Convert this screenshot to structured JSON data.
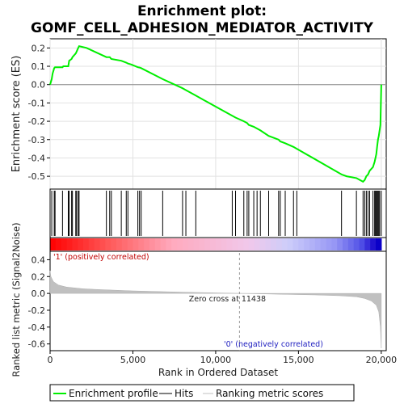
{
  "chart_data": {
    "type": "line",
    "title_line1": "Enrichment plot:",
    "title_line2": "GOMF_CELL_ADHESION_MEDIATOR_ACTIVITY",
    "es_panel": {
      "ylabel": "Enrichment score (ES)",
      "ylim": [
        -0.57,
        0.25
      ],
      "yticks": [
        0.2,
        0.1,
        0.0,
        -0.1,
        -0.2,
        -0.3,
        -0.4,
        -0.5
      ],
      "ytick_labels": [
        "0.2",
        "0.1",
        "0.0",
        "-0.1",
        "-0.2",
        "-0.3",
        "-0.4",
        "-0.5"
      ],
      "series_name": "Enrichment profile",
      "series_color": "#00ee00",
      "x": [
        0,
        100,
        150,
        250,
        300,
        750,
        800,
        1100,
        1150,
        1300,
        1350,
        1550,
        1600,
        1700,
        1750,
        2200,
        3400,
        3600,
        3700,
        4300,
        4600,
        4700,
        4900,
        5300,
        5400,
        5500,
        6800,
        8000,
        8200,
        8800,
        11000,
        11200,
        11700,
        11900,
        12000,
        12300,
        12500,
        12700,
        13200,
        13800,
        13900,
        14200,
        14700,
        14900,
        17600,
        17900,
        18500,
        18900,
        19000,
        19100,
        19200,
        19300,
        19500,
        19600,
        19700,
        19750,
        19800,
        19850,
        19900,
        19950,
        20000
      ],
      "y": [
        0.0,
        0.03,
        0.06,
        0.09,
        0.095,
        0.095,
        0.1,
        0.1,
        0.13,
        0.14,
        0.15,
        0.17,
        0.18,
        0.2,
        0.21,
        0.2,
        0.15,
        0.15,
        0.14,
        0.13,
        0.12,
        0.115,
        0.11,
        0.095,
        0.093,
        0.09,
        0.03,
        -0.02,
        -0.03,
        -0.06,
        -0.17,
        -0.18,
        -0.2,
        -0.21,
        -0.22,
        -0.23,
        -0.24,
        -0.25,
        -0.28,
        -0.3,
        -0.31,
        -0.32,
        -0.34,
        -0.35,
        -0.49,
        -0.5,
        -0.51,
        -0.53,
        -0.52,
        -0.5,
        -0.49,
        -0.47,
        -0.45,
        -0.42,
        -0.38,
        -0.34,
        -0.3,
        -0.28,
        -0.25,
        -0.22,
        0.0
      ]
    },
    "hits": [
      100,
      250,
      300,
      750,
      1100,
      1150,
      1300,
      1350,
      1550,
      1600,
      1700,
      1750,
      3400,
      3600,
      3700,
      4300,
      4600,
      4700,
      5300,
      5400,
      5500,
      6800,
      8000,
      8200,
      8800,
      11000,
      11200,
      11700,
      11900,
      12000,
      12300,
      12500,
      12700,
      13200,
      13800,
      13900,
      14200,
      14700,
      14900,
      17600,
      18500,
      18900,
      19000,
      19100,
      19200,
      19300,
      19500,
      19600,
      19650,
      19700,
      19750,
      19800,
      19850,
      19900,
      20000
    ],
    "metric_panel": {
      "ylabel": "Ranked list metric (Signal2Noise)",
      "ylim": [
        -0.68,
        0.5
      ],
      "yticks": [
        0.4,
        0.2,
        0.0,
        -0.2,
        -0.4,
        -0.6
      ],
      "ytick_labels": [
        "0.4",
        "0.2",
        "0.0",
        "-0.2",
        "-0.4",
        "-0.6"
      ],
      "x": [
        0,
        50,
        200,
        500,
        1000,
        2000,
        3000,
        5000,
        8000,
        11438,
        14000,
        16000,
        17500,
        18500,
        19000,
        19400,
        19700,
        19850,
        19950,
        20000
      ],
      "y": [
        0.27,
        0.2,
        0.14,
        0.1,
        0.075,
        0.055,
        0.045,
        0.03,
        0.015,
        0.0,
        -0.01,
        -0.018,
        -0.028,
        -0.04,
        -0.06,
        -0.09,
        -0.14,
        -0.22,
        -0.4,
        -0.65
      ],
      "zero_cross_label": "Zero cross at 11438",
      "zero_cross_x": 11438,
      "pos_label": "'1' (positively correlated)",
      "neg_label": "'0' (negatively correlated)"
    },
    "xlabel": "Rank in Ordered Dataset",
    "xlim": [
      0,
      20300
    ],
    "xticks": [
      0,
      5000,
      10000,
      15000,
      20000
    ],
    "xtick_labels": [
      "0",
      "5,000",
      "10,000",
      "15,000",
      "20,000"
    ],
    "legend": {
      "placement": "bottom",
      "items": [
        {
          "label": "Enrichment profile",
          "color": "#00ee00"
        },
        {
          "label": "Hits",
          "color": "#000000"
        },
        {
          "label": "Ranking metric scores",
          "color": "#c0c0c0"
        }
      ]
    }
  }
}
